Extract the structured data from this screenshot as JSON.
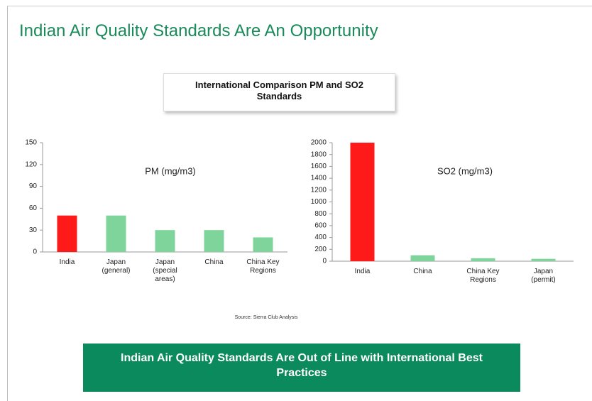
{
  "slide": {
    "title": "Indian Air Quality Standards Are An Opportunity",
    "header": "International Comparison  PM and SO2 Standards",
    "source": "Source: Sierra Club Analysis",
    "banner": "Indian Air Quality Standards Are Out of Line with International Best Practices"
  },
  "chart_data": [
    {
      "type": "bar",
      "title": "PM (mg/m3)",
      "categories": [
        "India",
        "Japan (general)",
        "Japan (special areas)",
        "China",
        "China Key Regions"
      ],
      "values": [
        50,
        50,
        30,
        30,
        20
      ],
      "colors": [
        "#ff1a1a",
        "#7fd49b",
        "#7fd49b",
        "#7fd49b",
        "#7fd49b"
      ],
      "ylim": [
        0,
        150
      ],
      "yticks": [
        0,
        30,
        60,
        90,
        120,
        150
      ]
    },
    {
      "type": "bar",
      "title": "SO2 (mg/m3)",
      "categories": [
        "India",
        "China",
        "China Key Regions",
        "Japan (permit)"
      ],
      "values": [
        2000,
        100,
        50,
        40
      ],
      "colors": [
        "#ff1a1a",
        "#7fd49b",
        "#7fd49b",
        "#7fd49b"
      ],
      "ylim": [
        0,
        2000
      ],
      "yticks": [
        0,
        200,
        400,
        600,
        800,
        1000,
        1200,
        1400,
        1600,
        1800,
        2000
      ]
    }
  ]
}
